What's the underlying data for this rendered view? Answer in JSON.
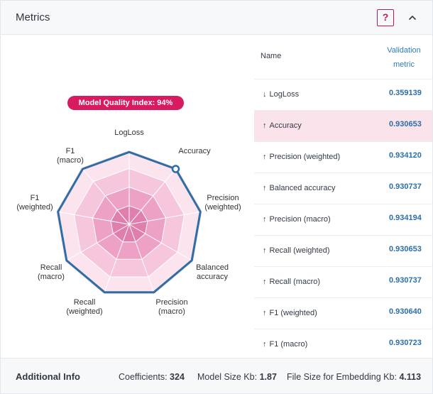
{
  "panel": {
    "title": "Metrics",
    "help_label": "?",
    "collapse_icon": "chevron-up-icon"
  },
  "radar": {
    "badge": "Model Quality Index: 94%",
    "labels": [
      [
        "LogLoss"
      ],
      [
        "Accuracy"
      ],
      [
        "Precision",
        "(weighted)"
      ],
      [
        "Balanced",
        "accuracy"
      ],
      [
        "Precision",
        "(macro)"
      ],
      [
        "Recall",
        "(weighted)"
      ],
      [
        "Recall",
        "(macro)"
      ],
      [
        "F1",
        "(weighted)"
      ],
      [
        "F1",
        "(macro)"
      ]
    ],
    "colors": {
      "ring_outer": "#fbe4ee",
      "ring_mid": "#f6c6dc",
      "ring_inner": "#eda2c5",
      "ring_core": "#e07eae",
      "series": "#2e6ea6"
    }
  },
  "table": {
    "header_name": "Name",
    "header_metric": "Validation metric",
    "rows": [
      {
        "arrow": "↓",
        "name": "LogLoss",
        "value": "0.359139",
        "highlight": false
      },
      {
        "arrow": "↑",
        "name": "Accuracy",
        "value": "0.930653",
        "highlight": true
      },
      {
        "arrow": "↑",
        "name": "Precision (weighted)",
        "value": "0.934120",
        "highlight": false
      },
      {
        "arrow": "↑",
        "name": "Balanced accuracy",
        "value": "0.930737",
        "highlight": false
      },
      {
        "arrow": "↑",
        "name": "Precision (macro)",
        "value": "0.934194",
        "highlight": false
      },
      {
        "arrow": "↑",
        "name": "Recall (weighted)",
        "value": "0.930653",
        "highlight": false
      },
      {
        "arrow": "↑",
        "name": "Recall (macro)",
        "value": "0.930737",
        "highlight": false
      },
      {
        "arrow": "↑",
        "name": "F1 (weighted)",
        "value": "0.930640",
        "highlight": false
      },
      {
        "arrow": "↑",
        "name": "F1 (macro)",
        "value": "0.930723",
        "highlight": false
      }
    ]
  },
  "footer": {
    "title": "Additional Info",
    "coefficients_label": "Coefficients:",
    "coefficients_value": "324",
    "model_size_label": "Model Size Kb:",
    "model_size_value": "1.87",
    "file_size_label": "File Size for Embedding Kb:",
    "file_size_value": "4.113"
  }
}
